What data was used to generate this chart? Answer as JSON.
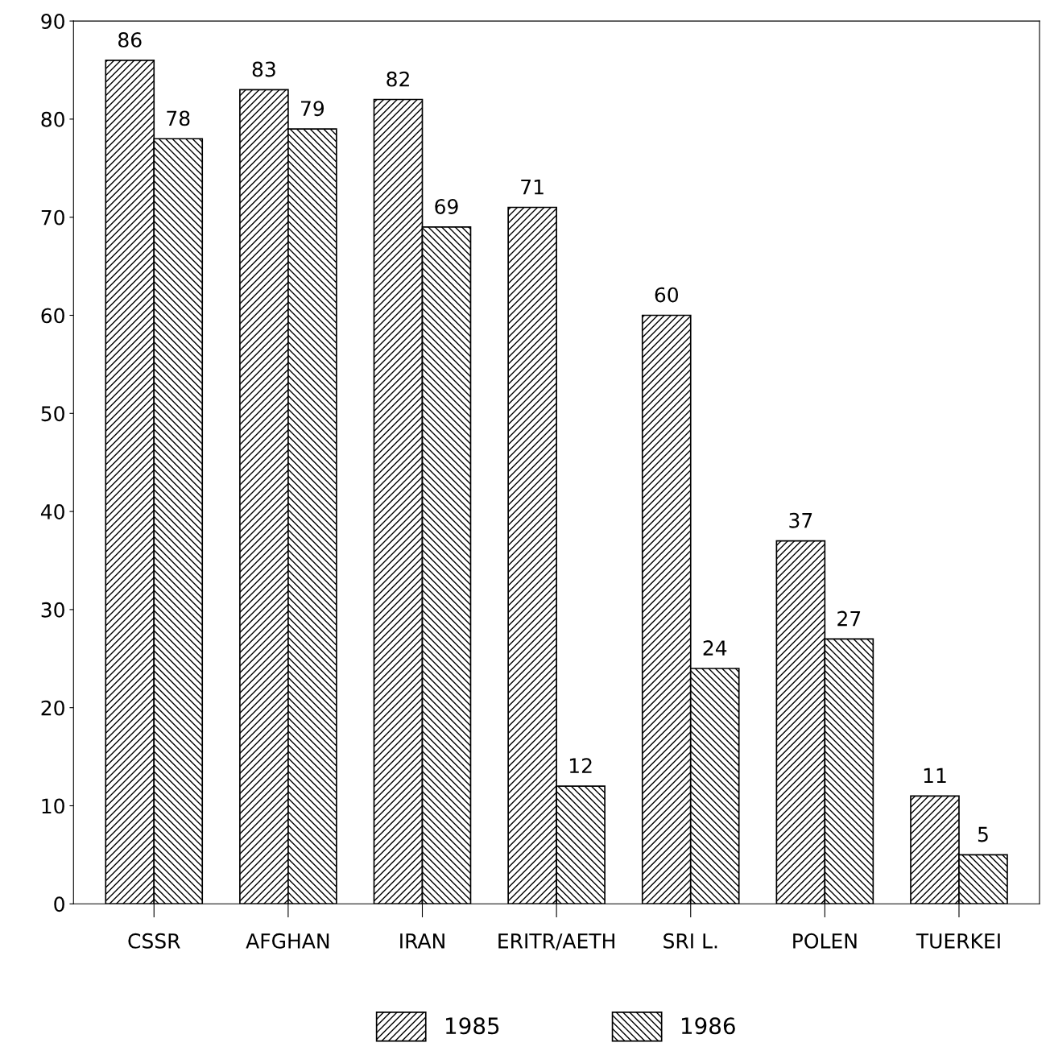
{
  "chart_data": {
    "type": "bar",
    "categories": [
      "CSSR",
      "AFGHAN",
      "IRAN",
      "ERITR/AETH",
      "SRI L.",
      "POLEN",
      "TUERKEI"
    ],
    "series": [
      {
        "name": "1985",
        "color": "#000000",
        "values": [
          86,
          83,
          82,
          71,
          60,
          37,
          11
        ]
      },
      {
        "name": "1986",
        "color": "#000000",
        "values": [
          78,
          79,
          69,
          12,
          24,
          27,
          5
        ]
      }
    ],
    "ylim": [
      0,
      90
    ],
    "yticks": [
      0,
      10,
      20,
      30,
      40,
      50,
      60,
      70,
      80,
      90
    ],
    "data_labels": true,
    "grid": false,
    "legend": "bottom"
  }
}
